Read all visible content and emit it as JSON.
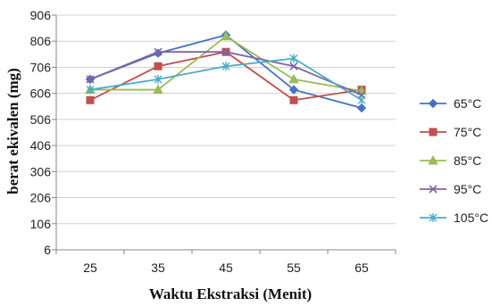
{
  "chart_data": {
    "type": "line",
    "xlabel": "Waktu Ekstraksi (Menit)",
    "ylabel": "berat ekivalen (mg)",
    "categories": [
      "25",
      "35",
      "45",
      "55",
      "65"
    ],
    "yticks": [
      "6",
      "106",
      "206",
      "306",
      "406",
      "506",
      "606",
      "706",
      "806",
      "906"
    ],
    "ylim": [
      6,
      906
    ],
    "grid": "horizontal",
    "legend_position": "right",
    "series": [
      {
        "name": "65°C",
        "values": [
          660,
          760,
          830,
          620,
          550
        ],
        "color": "#4472C4",
        "marker": "diamond"
      },
      {
        "name": "75°C",
        "values": [
          580,
          710,
          765,
          580,
          620
        ],
        "color": "#C0504D",
        "marker": "square"
      },
      {
        "name": "85°C",
        "values": [
          620,
          620,
          825,
          660,
          615
        ],
        "color": "#9BBB59",
        "marker": "triangle"
      },
      {
        "name": "95°C",
        "values": [
          660,
          765,
          765,
          710,
          600
        ],
        "color": "#8064A2",
        "marker": "x"
      },
      {
        "name": "105°C",
        "values": [
          620,
          660,
          710,
          740,
          580
        ],
        "color": "#4BACC6",
        "marker": "star"
      }
    ]
  }
}
